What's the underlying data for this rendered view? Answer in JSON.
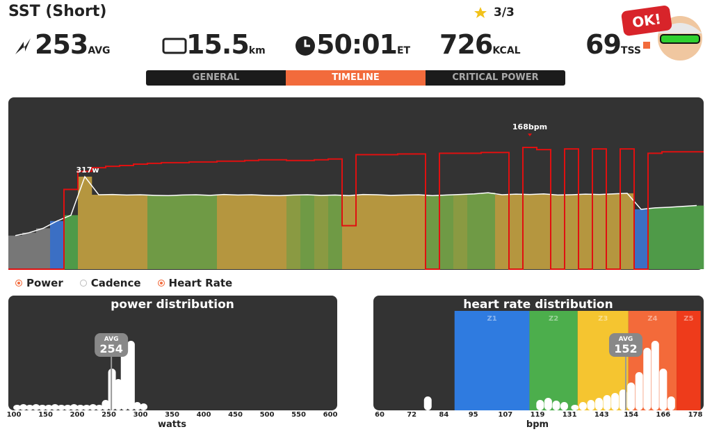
{
  "header": {
    "title": "SST (Short)",
    "stars": "3/3",
    "badge": "OK!",
    "stats": [
      {
        "value": 253,
        "unit": "AVG"
      },
      {
        "value": 15.5,
        "unit": "km"
      },
      {
        "value": "50:01",
        "unit": "ET"
      },
      {
        "value": 726,
        "unit": "KCAL"
      },
      {
        "value": 69,
        "unit": "TSS"
      }
    ]
  },
  "tabs": {
    "items": [
      "GENERAL",
      "TIMELINE",
      "CRITICAL POWER"
    ],
    "active": 1
  },
  "timeline": {
    "type": "line",
    "x": [
      0,
      1,
      2,
      3,
      4,
      5,
      6,
      7,
      8,
      9,
      10,
      11,
      12,
      13,
      14,
      15,
      16,
      17,
      18,
      19,
      20,
      21,
      22,
      23,
      24,
      25,
      26,
      27,
      28,
      29,
      30,
      31,
      32,
      33,
      34,
      35,
      36,
      37,
      38,
      39,
      40,
      41,
      42,
      43,
      44,
      45,
      46,
      47,
      48,
      49
    ],
    "series": [
      {
        "name": "Power",
        "color": "#ffffff",
        "values": [
          115,
          125,
          140,
          165,
          185,
          317,
          255,
          256,
          254,
          255,
          253,
          252,
          254,
          255,
          253,
          256,
          254,
          255,
          253,
          252,
          254,
          255,
          253,
          254,
          252,
          256,
          255,
          253,
          254,
          255,
          252,
          254,
          256,
          258,
          262,
          255,
          257,
          256,
          258,
          254,
          255,
          257,
          256,
          258,
          260,
          205,
          210,
          212,
          215,
          218
        ],
        "bar_colors": [
          "#777777",
          "#777777",
          "#777777",
          "#3b6fc4",
          "#4f9a48",
          "#b5963f",
          "#b5963f",
          "#b5963f",
          "#b5963f",
          "#b5963f",
          "#6f9a45",
          "#6f9a45",
          "#6f9a45",
          "#6f9a45",
          "#6f9a45",
          "#b5963f",
          "#b5963f",
          "#b5963f",
          "#b5963f",
          "#b5963f",
          "#8a9a42",
          "#6f9a45",
          "#8a9a42",
          "#6f9a45",
          "#b5963f",
          "#b5963f",
          "#b5963f",
          "#b5963f",
          "#b5963f",
          "#b5963f",
          "#6f9a45",
          "#6f9a45",
          "#8a9a42",
          "#6f9a45",
          "#6f9a45",
          "#b5963f",
          "#b5963f",
          "#b5963f",
          "#b5963f",
          "#b5963f",
          "#b5963f",
          "#b5963f",
          "#b5963f",
          "#b5963f",
          "#b5963f",
          "#3b6fc4",
          "#4f9a48",
          "#4f9a48",
          "#4f9a48",
          "#4f9a48"
        ]
      },
      {
        "name": "Heart Rate",
        "color": "#e01010",
        "values": [
          0,
          0,
          0,
          0,
          110,
          135,
          140,
          142,
          143,
          145,
          146,
          147,
          147,
          148,
          148,
          149,
          149,
          150,
          151,
          151,
          150,
          150,
          151,
          152,
          60,
          158,
          158,
          158,
          159,
          159,
          0,
          160,
          160,
          160,
          161,
          161,
          0,
          168,
          165,
          0,
          166,
          0,
          166,
          0,
          166,
          0,
          160,
          162,
          162,
          162
        ]
      }
    ],
    "max_power_label": "317w",
    "max_hr_label": "168bpm",
    "legend": [
      {
        "name": "Power",
        "active": true
      },
      {
        "name": "Cadence",
        "active": false
      },
      {
        "name": "Heart Rate",
        "active": true
      }
    ]
  },
  "power_distribution": {
    "type": "bar",
    "title": "power distribution",
    "xlabel": "watts",
    "x": [
      105,
      115,
      125,
      135,
      145,
      155,
      165,
      175,
      185,
      195,
      205,
      215,
      225,
      235,
      245,
      255,
      265,
      275,
      285,
      295,
      305
    ],
    "values": [
      8,
      9,
      8,
      9,
      8,
      8,
      9,
      8,
      8,
      9,
      8,
      8,
      9,
      8,
      15,
      60,
      45,
      100,
      100,
      12,
      10
    ],
    "xlim": [
      100,
      600
    ],
    "xticks": [
      100,
      150,
      200,
      250,
      300,
      350,
      400,
      450,
      500,
      550,
      600
    ],
    "average": 254,
    "average_label": "AVG"
  },
  "hr_distribution": {
    "type": "bar",
    "title": "heart rate distribution",
    "xlabel": "bpm",
    "x": [
      78,
      120,
      123,
      126,
      129,
      133,
      136,
      139,
      142,
      145,
      148,
      151,
      154,
      157,
      160,
      163,
      166,
      169
    ],
    "values": [
      20,
      15,
      18,
      14,
      12,
      8,
      12,
      15,
      18,
      22,
      25,
      30,
      40,
      55,
      90,
      100,
      60,
      20
    ],
    "xlim": [
      60,
      178
    ],
    "xticks": [
      60,
      72,
      84,
      95,
      107,
      119,
      131,
      143,
      154,
      166,
      178
    ],
    "zones": [
      {
        "name": "Z1",
        "from": 88,
        "to": 116,
        "color": "#2f7be0"
      },
      {
        "name": "Z2",
        "from": 116,
        "to": 134,
        "color": "#4cae4c"
      },
      {
        "name": "Z3",
        "from": 134,
        "to": 153,
        "color": "#f5c530"
      },
      {
        "name": "Z4",
        "from": 153,
        "to": 171,
        "color": "#f36a3a"
      },
      {
        "name": "Z5",
        "from": 171,
        "to": 180,
        "color": "#ee3b1b"
      }
    ],
    "average": 152,
    "average_label": "AVG"
  }
}
